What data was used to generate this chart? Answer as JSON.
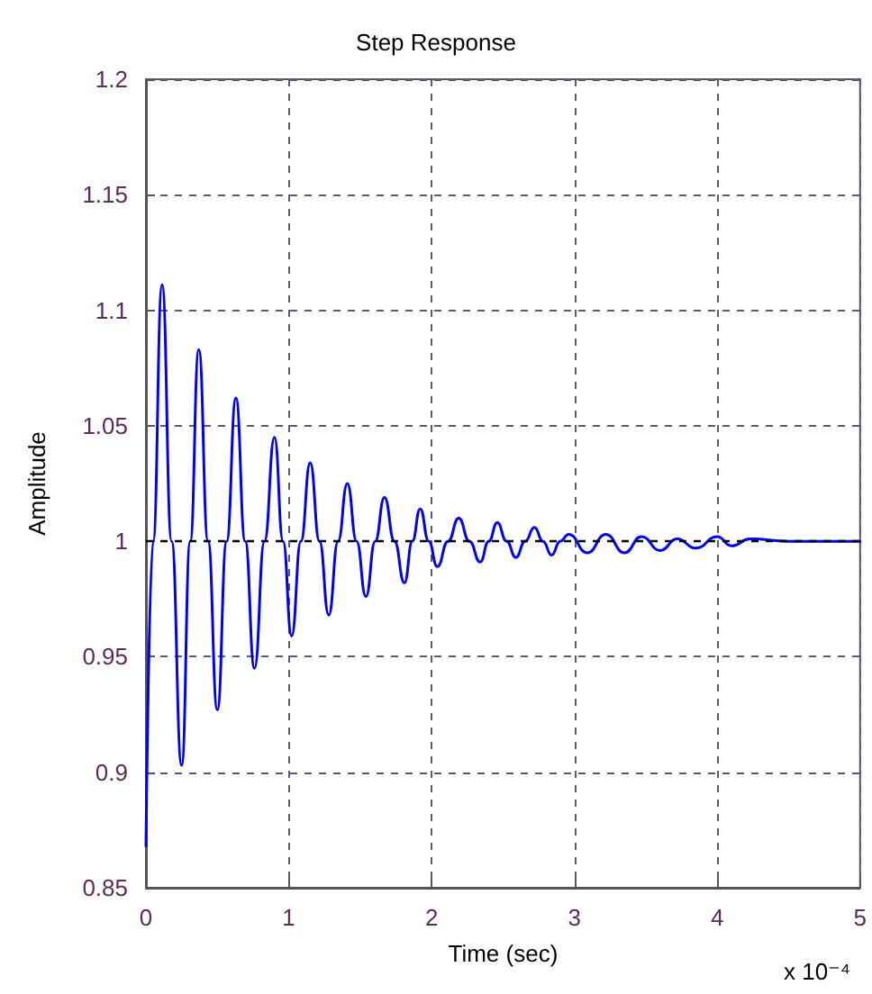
{
  "chart_data": {
    "type": "line",
    "title": "Step Response",
    "xlabel": "Time (sec)",
    "ylabel": "Amplitude",
    "annotations": [
      "x 10⁻⁴"
    ],
    "x": [
      0,
      0.05,
      0.113,
      0.18,
      0.25,
      0.31,
      0.37,
      0.435,
      0.5,
      0.565,
      0.63,
      0.695,
      0.76,
      0.83,
      0.9,
      0.96,
      1.02,
      1.085,
      1.15,
      1.215,
      1.28,
      1.345,
      1.41,
      1.475,
      1.54,
      1.605,
      1.67,
      1.74,
      1.81,
      1.865,
      1.92,
      1.98,
      2.04,
      2.115,
      2.19,
      2.265,
      2.34,
      2.4,
      2.46,
      2.525,
      2.59,
      2.655,
      2.72,
      2.78,
      2.84,
      2.9,
      2.96,
      3.09,
      3.22,
      3.35,
      3.47,
      3.6,
      3.72,
      3.85,
      4.0,
      4.1,
      4.23,
      4.5,
      5
    ],
    "series": [
      {
        "color": "#0000ff",
        "values": [
          0.868,
          1.0,
          1.111,
          1.0,
          0.903,
          1.0,
          1.083,
          1.0,
          0.927,
          1.0,
          1.062,
          1.0,
          0.945,
          1.0,
          1.045,
          1.0,
          0.959,
          1.0,
          1.034,
          1.0,
          0.968,
          1.0,
          1.025,
          1.0,
          0.976,
          1.0,
          1.019,
          1.0,
          0.982,
          1.0,
          1.014,
          1.0,
          0.989,
          1.0,
          1.01,
          1.0,
          0.991,
          1.0,
          1.008,
          1.0,
          0.993,
          1.0,
          1.006,
          1.0,
          0.994,
          1.0,
          1.003,
          0.995,
          1.003,
          0.995,
          1.002,
          0.996,
          1.001,
          0.997,
          1.002,
          0.998,
          1.001,
          1.0,
          1.0
        ]
      }
    ],
    "xlim": [
      0,
      5
    ],
    "xticks": [
      0,
      1,
      2,
      3,
      4,
      5
    ],
    "ylim": [
      0.85,
      1.2
    ],
    "yticks": [
      0.85,
      0.9,
      0.95,
      1,
      1.05,
      1.1,
      1.15,
      1.2
    ],
    "ref_lines": [
      {
        "axis": "y",
        "value": 1,
        "color": "#000000",
        "line_style": "dashed"
      }
    ],
    "grid": true,
    "marker": "none",
    "line_style": "solid"
  }
}
